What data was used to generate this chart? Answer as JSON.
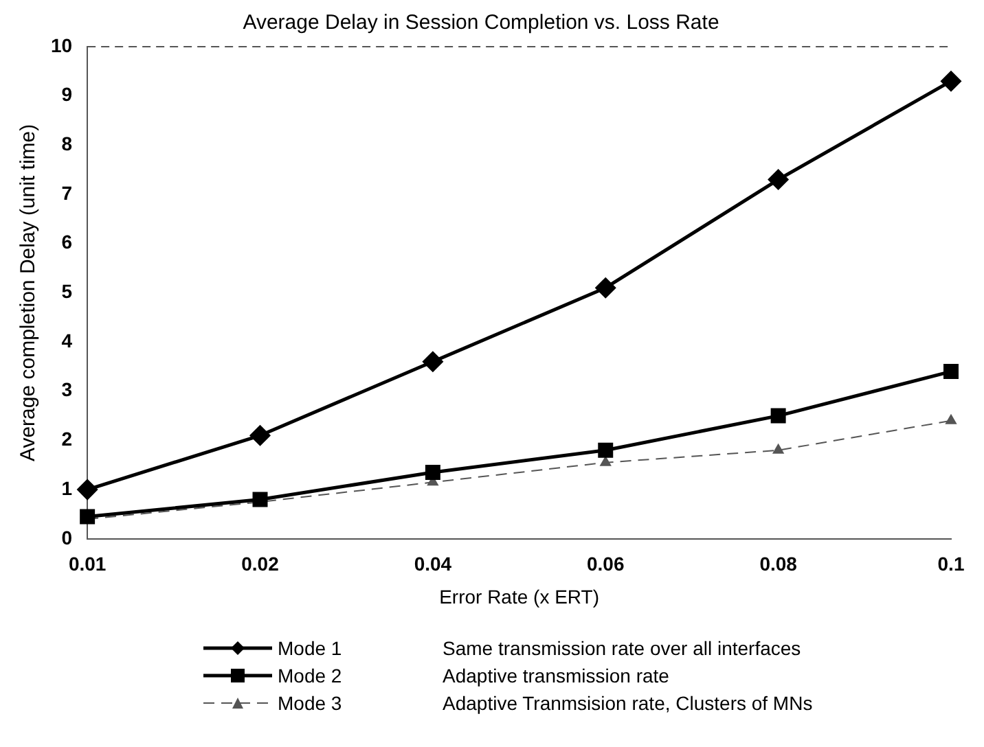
{
  "chart_data": {
    "type": "line",
    "title": "Average Delay in Session Completion vs. Loss Rate",
    "xlabel": "Error Rate (x ERT)",
    "ylabel": "Average completion Delay (unit time)",
    "categories": [
      "0.01",
      "0.02",
      "0.04",
      "0.06",
      "0.08",
      "0.1"
    ],
    "ylim": [
      0,
      10
    ],
    "yticks": [
      0,
      1,
      2,
      3,
      4,
      5,
      6,
      7,
      8,
      9,
      10
    ],
    "grid": false,
    "legend": "bottom",
    "series": [
      {
        "name": "Mode 1",
        "color": "#000000",
        "values": [
          1.0,
          2.1,
          3.6,
          5.1,
          7.3,
          9.3
        ],
        "marker": "diamond",
        "line_style": "solid"
      },
      {
        "name": "Mode 2",
        "color": "#000000",
        "values": [
          0.45,
          0.8,
          1.35,
          1.8,
          2.5,
          3.4
        ],
        "marker": "square",
        "line_style": "solid"
      },
      {
        "name": "Mode 3",
        "color": "#555555",
        "values": [
          0.4,
          0.75,
          1.15,
          1.55,
          1.8,
          2.4
        ],
        "marker": "triangle",
        "line_style": "dashed"
      }
    ],
    "annotations": [
      "Same transmission rate over all interfaces",
      "Adaptive transmission rate",
      "Adaptive Tranmsision rate, Clusters of MNs"
    ]
  }
}
